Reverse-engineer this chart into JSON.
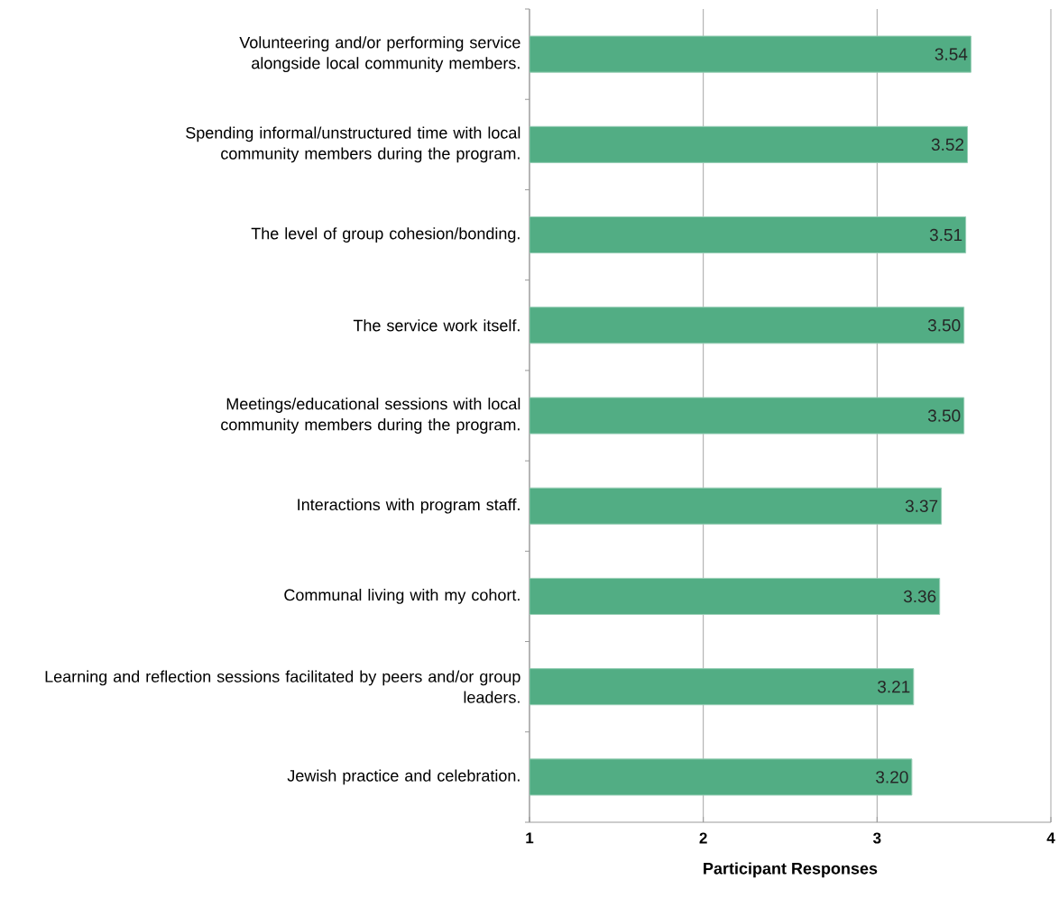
{
  "chart_data": {
    "type": "bar",
    "orientation": "horizontal",
    "xlabel": "Participant Responses",
    "categories": [
      "Volunteering and/or performing service alongside local community members.",
      "Spending informal/unstructured time with local community members during the program.",
      "The level of group cohesion/bonding.",
      "The service work itself.",
      "Meetings/educational sessions with local community members during the program.",
      "Interactions with program staff.",
      "Communal living with my cohort.",
      "Learning and reflection sessions facilitated by peers and/or group leaders.",
      "Jewish practice and celebration."
    ],
    "values": [
      3.54,
      3.52,
      3.51,
      3.5,
      3.5,
      3.37,
      3.36,
      3.21,
      3.2
    ],
    "value_labels": [
      "3.54",
      "3.52",
      "3.51",
      "3.50",
      "3.50",
      "3.37",
      "3.36",
      "3.21",
      "3.20"
    ],
    "color": "#52ad84",
    "xlim": [
      1,
      4
    ],
    "xticks": [
      1,
      2,
      3,
      4
    ],
    "grid": "x"
  }
}
